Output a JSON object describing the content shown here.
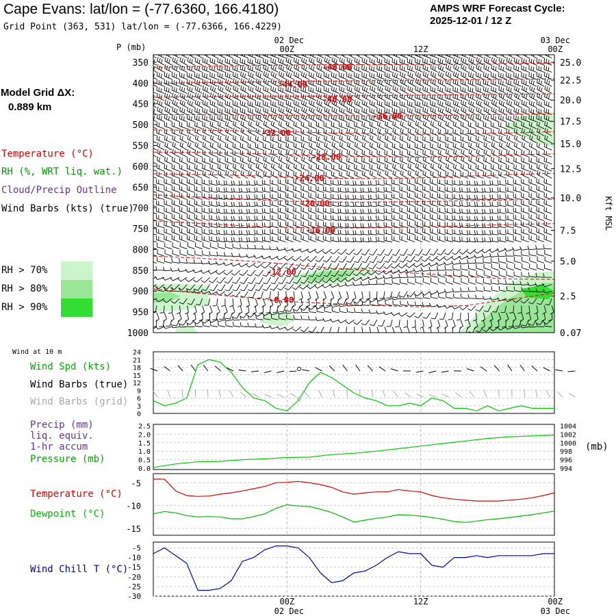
{
  "header": {
    "title": "Cape Evans:  lat/lon = (-77.6360, 166.4180)",
    "subtitle": "Grid Point (363, 531) lat/lon = (-77.6366, 166.4229)",
    "cycle_label": "AMPS WRF Forecast Cycle:",
    "cycle_value": "2025-12-01 / 12  Z",
    "grid_label": "Model Grid ΔX:",
    "grid_value": "0.889 km"
  },
  "colors": {
    "temperature": "#dd0000",
    "rh": "#009900",
    "cloud": "#663399",
    "wind": "#000000",
    "wind_grid": "#aaaaaa",
    "dewpoint": "#00bb00",
    "windchill": "#0000aa",
    "rh70": "#ccf5cc",
    "rh80": "#99e699",
    "rh90": "#33dd33"
  },
  "legend": {
    "temperature": "Temperature (°C)",
    "rh": "RH (%, WRT liq. wat.)",
    "cloud": "Cloud/Precip Outline",
    "wind": "Wind Barbs (kts) (true)",
    "rh70": "RH > 70%",
    "rh80": "RH > 80%",
    "rh90": "RH > 90%"
  },
  "panel_labels": {
    "wind10": "Wind at 10 m",
    "wind_spd": "Wind Spd (kts)",
    "wind_barbs_true": "Wind Barbs (true)",
    "wind_barbs_grid": "Wind Barbs (grid)",
    "precip1": "Precip (mm)",
    "precip2": "liq. equiv.",
    "precip3": "1-hr accum",
    "pressure": "Pressure (mb)",
    "pressure_units": "(mb)",
    "temperature": "Temperature (°C)",
    "dewpoint": "Dewpoint (°C)",
    "windchill": "Wind Chill T (°C)"
  },
  "chart_data": [
    {
      "type": "contour",
      "panel": "cross-section",
      "y_axis_label": "P (mb)",
      "right_axis_label": "Kft MSL",
      "pressure_ticks": [
        "350",
        "400",
        "450",
        "500",
        "550",
        "600",
        "650",
        "700",
        "750",
        "800",
        "850",
        "900",
        "950",
        "1000"
      ],
      "height_ticks": [
        {
          "label": "25.0",
          "p": 350
        },
        {
          "label": "22.5",
          "p": 393
        },
        {
          "label": "20.0",
          "p": 441
        },
        {
          "label": "17.5",
          "p": 492
        },
        {
          "label": "15.0",
          "p": 546
        },
        {
          "label": "12.5",
          "p": 606
        },
        {
          "label": "10.0",
          "p": 676
        },
        {
          "label": "7.5",
          "p": 754
        },
        {
          "label": "5.0",
          "p": 828
        },
        {
          "label": "2.5",
          "p": 912
        },
        {
          "label": "0.07",
          "p": 1000
        }
      ],
      "time_ticks_top": [
        {
          "date": "02 Dec",
          "time": "00Z",
          "h": 12
        },
        {
          "date": "",
          "time": "12Z",
          "h": 24
        },
        {
          "date": "03 Dec",
          "time": "00Z",
          "h": 36
        }
      ],
      "time_range_hours": [
        0,
        36
      ],
      "temperature_contours": [
        {
          "label": "-48.00",
          "p": [
            362,
            360,
            358,
            357,
            356,
            356,
            355,
            354,
            353,
            352
          ],
          "label_h": 16.5,
          "label_p": 362
        },
        {
          "label": "-44.00",
          "p": [
            401,
            399,
            398,
            396,
            395,
            394,
            393,
            392,
            391,
            390
          ],
          "label_h": 12.5,
          "label_p": 404
        },
        {
          "label": "-40.00",
          "p": [
            434,
            433,
            432,
            432,
            431,
            430,
            429,
            428,
            427,
            426
          ],
          "label_h": 16.5,
          "label_p": 440
        },
        {
          "label": "-36.00",
          "p": [
            476,
            476,
            477,
            478,
            478,
            479,
            478,
            477,
            475,
            474
          ],
          "label_h": 21.0,
          "label_p": 479
        },
        {
          "label": "-32.00",
          "p": [
            513,
            513,
            515,
            517,
            520,
            522,
            523,
            522,
            520,
            517
          ],
          "label_h": 11.0,
          "label_p": 520
        },
        {
          "label": "-28.00",
          "p": [
            566,
            567,
            569,
            572,
            575,
            577,
            578,
            576,
            573,
            570
          ],
          "label_h": 15.5,
          "label_p": 578
        },
        {
          "label": "-24.00",
          "p": [
            618,
            620,
            622,
            626,
            629,
            630,
            628,
            624,
            620,
            617
          ],
          "label_h": 14.0,
          "label_p": 629
        },
        {
          "label": "-20.00",
          "p": [
            669,
            674,
            679,
            684,
            686,
            686,
            685,
            683,
            681,
            679
          ],
          "label_h": 14.5,
          "label_p": 690
        },
        {
          "label": "-16.00",
          "p": [
            731,
            737,
            743,
            747,
            749,
            748,
            746,
            743,
            740,
            738
          ],
          "label_h": 15.0,
          "label_p": 754
        },
        {
          "label": "-12.00",
          "p": [
            816,
            821,
            827,
            835,
            845,
            852,
            858,
            865,
            871,
            872
          ],
          "label_h": 11.5,
          "label_p": 854
        },
        {
          "label": "-8.00",
          "p": [
            895,
            905,
            915,
            925,
            930,
            935,
            938,
            935,
            920,
            905
          ],
          "label_h": 11.5,
          "label_p": 922
        }
      ],
      "rh_regions": [
        {
          "level": "rh70",
          "pts": [
            [
              0,
              885
            ],
            [
              2,
              882
            ],
            [
              5,
              888
            ],
            [
              5,
              930
            ],
            [
              3,
              945
            ],
            [
              0,
              950
            ]
          ]
        },
        {
          "level": "rh80",
          "pts": [
            [
              0,
              905
            ],
            [
              1.5,
              903
            ],
            [
              2.5,
              912
            ],
            [
              1.5,
              925
            ],
            [
              0,
              928
            ]
          ]
        },
        {
          "level": "rh70",
          "pts": [
            [
              12.5,
              862
            ],
            [
              15,
              848
            ],
            [
              19,
              842
            ],
            [
              20,
              858
            ],
            [
              17,
              882
            ],
            [
              13,
              888
            ],
            [
              12.5,
              875
            ]
          ]
        },
        {
          "level": "rh80",
          "pts": [
            [
              13.5,
              864
            ],
            [
              15.5,
              852
            ],
            [
              18,
              852
            ],
            [
              17,
              873
            ],
            [
              14,
              876
            ]
          ]
        },
        {
          "level": "rh70",
          "pts": [
            [
              10,
              955
            ],
            [
              12,
              950
            ],
            [
              13,
              968
            ],
            [
              11.5,
              985
            ],
            [
              9.5,
              975
            ]
          ]
        },
        {
          "level": "rh70",
          "pts": [
            [
              28,
              985
            ],
            [
              30,
              925
            ],
            [
              32,
              882
            ],
            [
              34.5,
              855
            ],
            [
              36,
              852
            ],
            [
              36,
              1000
            ],
            [
              27.5,
              1000
            ]
          ]
        },
        {
          "level": "rh80",
          "pts": [
            [
              29,
              985
            ],
            [
              31,
              935
            ],
            [
              33,
              900
            ],
            [
              35,
              880
            ],
            [
              36,
              880
            ],
            [
              36,
              1000
            ],
            [
              29,
              1000
            ]
          ]
        },
        {
          "level": "rh90",
          "pts": [
            [
              33,
              895
            ],
            [
              35,
              885
            ],
            [
              36,
              900
            ],
            [
              35.5,
              920
            ],
            [
              33.5,
              915
            ]
          ]
        },
        {
          "level": "rh70",
          "pts": [
            [
              31.5,
              505
            ],
            [
              33,
              480
            ],
            [
              35,
              470
            ],
            [
              36,
              470
            ],
            [
              36,
              555
            ],
            [
              34,
              540
            ]
          ]
        },
        {
          "level": "rh70",
          "pts": [
            [
              2,
              990
            ],
            [
              3.5,
              985
            ],
            [
              4,
              1000
            ],
            [
              2,
              1000
            ]
          ]
        }
      ]
    },
    {
      "type": "line",
      "panel": "wind10",
      "title": "Wind Spd (kts)",
      "y_ticks": [
        "0",
        "3",
        "6",
        "9",
        "12",
        "15",
        "18",
        "21",
        "24"
      ],
      "ylim": [
        0,
        24
      ],
      "x_hours": [
        0,
        1,
        2,
        3,
        4,
        5,
        6,
        7,
        8,
        9,
        10,
        11,
        12,
        13,
        14,
        15,
        16,
        17,
        18,
        19,
        20,
        21,
        22,
        23,
        24,
        25,
        26,
        27,
        28,
        29,
        30,
        31,
        32,
        33,
        34,
        35,
        36
      ],
      "series": [
        {
          "name": "Wind Spd (kts)",
          "color": "rh",
          "values": [
            5,
            3,
            4,
            6,
            19,
            21,
            20,
            16,
            10,
            6,
            5,
            2,
            1,
            5,
            12,
            16,
            14,
            11,
            8,
            6,
            5,
            3,
            3,
            4,
            3,
            6,
            5,
            2,
            2,
            1,
            3,
            1,
            2,
            3,
            2,
            2,
            2
          ]
        }
      ]
    },
    {
      "type": "line",
      "panel": "precip_pressure",
      "title": "Pressure (mb)",
      "y_ticks_left": [
        "0.0",
        "0.5",
        "1.0",
        "1.5",
        "2.0",
        "2.5"
      ],
      "y_ticks_right": [
        "994",
        "996",
        "998",
        "1000",
        "1002",
        "1004"
      ],
      "ylim_right": [
        994,
        1004
      ],
      "x_hours": [
        0,
        2,
        4,
        6,
        8,
        10,
        12,
        14,
        16,
        18,
        20,
        22,
        24,
        26,
        28,
        30,
        32,
        34,
        36
      ],
      "series": [
        {
          "name": "Pressure (mb)",
          "values": [
            994.2,
            995.0,
            995.5,
            995.6,
            996.0,
            996.2,
            996.5,
            996.6,
            997.2,
            997.5,
            998.0,
            998.6,
            999.2,
            999.8,
            1000.4,
            1001.0,
            1001.4,
            1001.6,
            1001.8
          ]
        }
      ]
    },
    {
      "type": "line",
      "panel": "temperature",
      "title": "Temperature (°C)",
      "y_ticks": [
        "-5",
        "-10",
        "-15"
      ],
      "ylim": [
        -16.5,
        -3
      ],
      "x_hours": [
        0,
        1,
        2,
        3,
        4,
        5,
        6,
        7,
        8,
        9,
        10,
        11,
        12,
        13,
        14,
        15,
        16,
        17,
        18,
        19,
        20,
        21,
        22,
        23,
        24,
        25,
        26,
        27,
        28,
        29,
        30,
        31,
        32,
        33,
        34,
        35,
        36
      ],
      "series": [
        {
          "name": "Temperature (°C)",
          "color": "temperature",
          "values": [
            -4.2,
            -4.2,
            -6.8,
            -7.8,
            -8.0,
            -7.9,
            -7.5,
            -7.2,
            -6.8,
            -6.3,
            -5.8,
            -5.0,
            -4.9,
            -4.7,
            -5.0,
            -5.4,
            -6.0,
            -7.0,
            -7.5,
            -7.2,
            -7.0,
            -7.0,
            -6.5,
            -6.8,
            -7.0,
            -7.8,
            -8.3,
            -8.6,
            -8.8,
            -9.0,
            -9.0,
            -9.0,
            -8.8,
            -8.6,
            -8.3,
            -7.8,
            -7.2
          ]
        },
        {
          "name": "Dewpoint (°C)",
          "color": "dewpoint",
          "values": [
            -11.8,
            -11.3,
            -11.6,
            -12.2,
            -12.5,
            -12.4,
            -12.5,
            -12.9,
            -12.9,
            -12.4,
            -11.8,
            -10.6,
            -9.8,
            -10.1,
            -10.2,
            -10.8,
            -11.5,
            -12.5,
            -13.6,
            -13.2,
            -12.8,
            -12.5,
            -12.0,
            -12.1,
            -12.3,
            -12.6,
            -13.0,
            -13.5,
            -13.7,
            -13.4,
            -13.1,
            -12.9,
            -12.6,
            -12.3,
            -12.0,
            -11.6,
            -11.2
          ]
        }
      ]
    },
    {
      "type": "line",
      "panel": "windchill",
      "title": "Wind Chill T (°C)",
      "y_ticks": [
        "-5",
        "-10",
        "-15",
        "-20",
        "-25",
        "-30"
      ],
      "ylim": [
        -30,
        -2
      ],
      "x_hours": [
        0,
        1,
        2,
        3,
        4,
        5,
        6,
        7,
        8,
        9,
        10,
        11,
        12,
        13,
        14,
        15,
        16,
        17,
        18,
        19,
        20,
        21,
        22,
        23,
        24,
        25,
        26,
        27,
        28,
        29,
        30,
        31,
        32,
        33,
        34,
        35,
        36
      ],
      "series": [
        {
          "name": "Wind Chill T (°C)",
          "color": "windchill",
          "values": [
            -8,
            -5,
            -9,
            -13,
            -27,
            -27,
            -26,
            -22,
            -12,
            -10,
            -6,
            -4,
            -4,
            -5,
            -10,
            -18,
            -23,
            -22,
            -18,
            -17,
            -14,
            -10,
            -7,
            -8,
            -8,
            -14,
            -15,
            -10,
            -10,
            -9,
            -10,
            -9,
            -9,
            -9,
            -9,
            -8,
            -8
          ]
        }
      ]
    }
  ]
}
